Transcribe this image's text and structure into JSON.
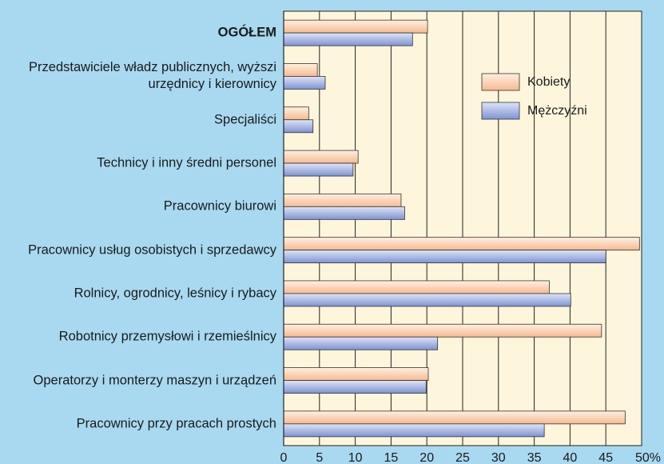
{
  "chart_data": {
    "type": "bar",
    "orientation": "horizontal",
    "categories": [
      "OGÓŁEM",
      "Przedstawiciele władz publicznych, wyższi\nurzędnicy i kierownicy",
      "Specjaliści",
      "Technicy i inny średni personel",
      "Pracownicy biurowi",
      "Pracownicy usług osobistych i sprzedawcy",
      "Rolnicy, ogrodnicy, leśnicy i rybacy",
      "Robotnicy przemysłowi i rzemieślnicy",
      "Operatorzy i monterzy maszyn i urządzeń",
      "Pracownicy przy pracach prostych"
    ],
    "series": [
      {
        "name": "Kobiety",
        "color": "#f6b990",
        "values": [
          20.1,
          4.7,
          3.5,
          10.4,
          16.4,
          49.7,
          37.1,
          44.4,
          20.2,
          47.7
        ]
      },
      {
        "name": "Mężczyźni",
        "color": "#7f93d2",
        "values": [
          18.0,
          5.8,
          4.1,
          9.7,
          16.9,
          45.0,
          40.1,
          21.5,
          19.9,
          36.4
        ]
      }
    ],
    "xlim": [
      0,
      50
    ],
    "xticks": [
      0,
      5,
      10,
      15,
      20,
      25,
      30,
      35,
      40,
      45,
      {
        "value": 50,
        "label": "50%"
      }
    ],
    "grid": true
  }
}
